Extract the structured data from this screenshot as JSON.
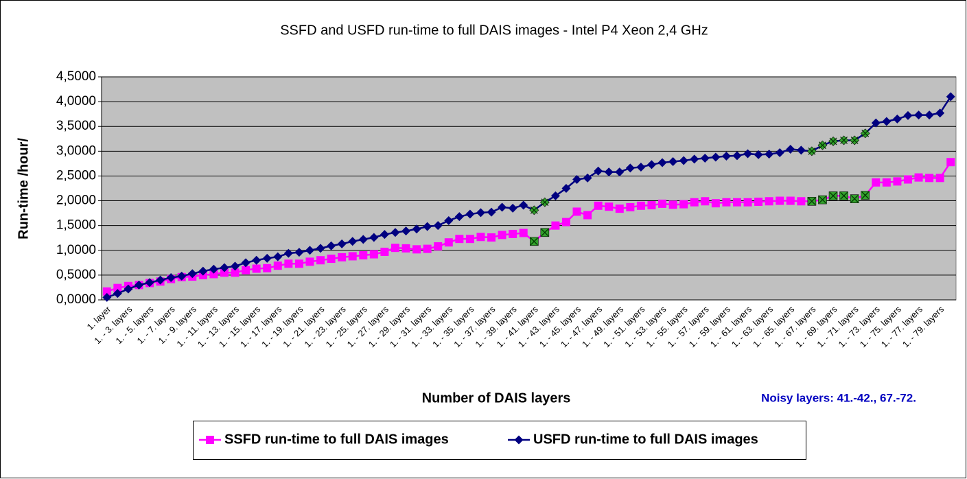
{
  "chart_data": {
    "type": "line",
    "title": "SSFD and USFD run-time to full DAIS images - Intel P4 Xeon 2,4 GHz",
    "ylabel": "Run-time /hour/",
    "xlabel": "Number of DAIS layers",
    "annotation": "Noisy layers: 41.-42., 67.-72.",
    "categories": [
      "1. layer",
      null,
      "1. - 3. layers",
      null,
      "1. - 5. layers",
      null,
      "1. - 7. layers",
      null,
      "1. - 9. layers",
      null,
      "1. - 11. layers",
      null,
      "1. - 13. layers",
      null,
      "1. - 15. layers",
      null,
      "1. - 17. layers",
      null,
      "1. - 19. layers",
      null,
      "1. - 21. layers",
      null,
      "1. - 23. layers",
      null,
      "1. - 25. layers",
      null,
      "1. - 27. layers",
      null,
      "1. - 29. layers",
      null,
      "1. - 31. layers",
      null,
      "1. - 33. layers",
      null,
      "1. - 35. layers",
      null,
      "1. - 37. layers",
      null,
      "1. - 39. layers",
      null,
      "1. - 41. layers",
      null,
      "1. - 43. layers",
      null,
      "1. - 45. layers",
      null,
      "1. - 47. layers",
      null,
      "1. - 49. layers",
      null,
      "1. - 51. layers",
      null,
      "1. - 53. layers",
      null,
      "1. - 55. layers",
      null,
      "1. - 57. layers",
      null,
      "1. - 59. layers",
      null,
      "1. - 61. layers",
      null,
      "1. - 63. layers",
      null,
      "1. - 65. layers",
      null,
      "1. - 67. layers",
      null,
      "1. - 69. layers",
      null,
      "1. - 71. layers",
      null,
      "1. - 73. layers",
      null,
      "1. - 75. layers",
      null,
      "1. - 77. layers",
      null,
      "1. - 79. layers",
      null
    ],
    "series": [
      {
        "name": "SSFD run-time to full DAIS images",
        "color": "#ff00ff",
        "marker": "square",
        "values": [
          0.17,
          0.24,
          0.28,
          0.3,
          0.34,
          0.37,
          0.42,
          0.46,
          0.47,
          0.5,
          0.52,
          0.55,
          0.55,
          0.6,
          0.63,
          0.64,
          0.69,
          0.73,
          0.73,
          0.77,
          0.8,
          0.83,
          0.86,
          0.88,
          0.9,
          0.92,
          0.97,
          1.05,
          1.04,
          1.02,
          1.03,
          1.08,
          1.16,
          1.23,
          1.23,
          1.27,
          1.26,
          1.31,
          1.33,
          1.35,
          1.18,
          1.36,
          1.5,
          1.57,
          1.78,
          1.71,
          1.9,
          1.88,
          1.84,
          1.87,
          1.9,
          1.91,
          1.94,
          1.92,
          1.93,
          1.97,
          1.99,
          1.95,
          1.97,
          1.97,
          1.97,
          1.98,
          1.99,
          2.0,
          2.0,
          1.99,
          1.99,
          2.02,
          2.1,
          2.1,
          2.04,
          2.11,
          2.37,
          2.37,
          2.39,
          2.43,
          2.47,
          2.46,
          2.46,
          2.78
        ]
      },
      {
        "name": "USFD run-time to full DAIS images",
        "color": "#000080",
        "marker": "diamond",
        "values": [
          0.05,
          0.13,
          0.22,
          0.3,
          0.35,
          0.4,
          0.45,
          0.48,
          0.53,
          0.58,
          0.62,
          0.65,
          0.68,
          0.75,
          0.8,
          0.84,
          0.87,
          0.94,
          0.96,
          1.0,
          1.04,
          1.09,
          1.13,
          1.18,
          1.22,
          1.26,
          1.32,
          1.36,
          1.39,
          1.43,
          1.48,
          1.5,
          1.6,
          1.68,
          1.73,
          1.76,
          1.77,
          1.87,
          1.85,
          1.91,
          1.81,
          1.97,
          2.1,
          2.25,
          2.43,
          2.46,
          2.6,
          2.58,
          2.58,
          2.66,
          2.68,
          2.73,
          2.77,
          2.79,
          2.81,
          2.84,
          2.86,
          2.88,
          2.9,
          2.91,
          2.95,
          2.93,
          2.94,
          2.97,
          3.04,
          3.02,
          3.0,
          3.12,
          3.2,
          3.22,
          3.22,
          3.36,
          3.57,
          3.6,
          3.65,
          3.72,
          3.73,
          3.73,
          3.77,
          4.1
        ]
      }
    ],
    "highlight_points": {
      "color": "#33a02c",
      "indices": [
        40,
        41,
        66,
        67,
        68,
        69,
        70,
        71
      ]
    },
    "ylim": [
      0,
      4.5
    ],
    "yticks": [
      {
        "value": 0,
        "label": "0,0000"
      },
      {
        "value": 0.5,
        "label": "0,5000"
      },
      {
        "value": 1,
        "label": "1,0000"
      },
      {
        "value": 1.5,
        "label": "1,5000"
      },
      {
        "value": 2,
        "label": "2,0000"
      },
      {
        "value": 2.5,
        "label": "2,5000"
      },
      {
        "value": 3,
        "label": "3,0000"
      },
      {
        "value": 3.5,
        "label": "3,5000"
      },
      {
        "value": 4,
        "label": "4,0000"
      },
      {
        "value": 4.5,
        "label": "4,5000"
      }
    ],
    "grid": true,
    "plot_background": "#c0c0c0",
    "legend": "bottom"
  }
}
